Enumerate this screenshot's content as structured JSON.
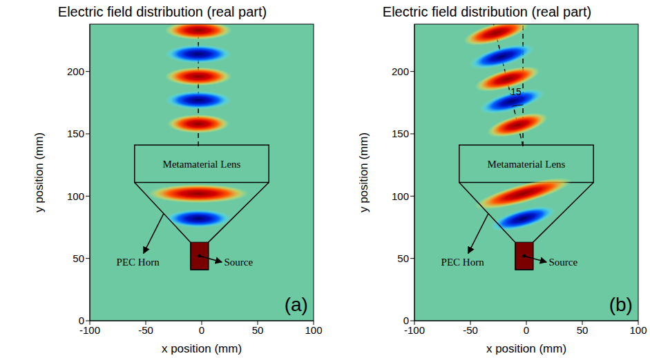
{
  "chart_data": [
    {
      "type": "field_map",
      "title": "Electric field distribution (real part)",
      "panel": "(a)",
      "x_label": "x position (mm)",
      "y_label": "y position (mm)",
      "xlim": [
        -100,
        100
      ],
      "ylim": [
        0,
        238
      ],
      "xticks": [
        -100,
        -50,
        0,
        50,
        100
      ],
      "yticks": [
        0,
        50,
        100,
        150,
        200
      ],
      "peaks": {
        "x": [
          -3,
          -3,
          -3,
          -3,
          -3,
          -3,
          -3
        ],
        "y": [
          233,
          214,
          196,
          177,
          158,
          102,
          82
        ],
        "sign": [
          1,
          -1,
          1,
          -1,
          1,
          1,
          -1
        ],
        "w": [
          60,
          60,
          60,
          60,
          56,
          90,
          60
        ]
      },
      "lens": {
        "label": "Metamaterial Lens",
        "x": [
          -60,
          60
        ],
        "y": [
          111,
          141
        ]
      },
      "horn": {
        "label": "PEC Horn",
        "x": [
          -60,
          -10,
          -10,
          6,
          6,
          60
        ],
        "y": [
          111,
          63,
          41,
          41,
          63,
          111
        ]
      },
      "source": {
        "label": "Source",
        "x": [
          -10,
          6
        ],
        "y": [
          41,
          63
        ]
      },
      "beam": {
        "origin": [
          -3,
          140
        ],
        "angle": 0
      }
    },
    {
      "type": "field_map",
      "title": "Electric field distribution (real part)",
      "panel": "(b)",
      "x_label": "x position (mm)",
      "y_label": "y position (mm)",
      "xlim": [
        -100,
        100
      ],
      "ylim": [
        0,
        238
      ],
      "xticks": [
        -100,
        -50,
        0,
        50,
        100
      ],
      "yticks": [
        0,
        50,
        100,
        150,
        200
      ],
      "peaks": {
        "x": [
          -27,
          -22,
          -17,
          -13,
          -8,
          -3,
          -3
        ],
        "y": [
          231,
          212,
          194,
          176,
          157,
          102,
          82
        ],
        "sign": [
          1,
          -1,
          1,
          -1,
          1,
          1,
          -1
        ],
        "w": [
          60,
          60,
          60,
          60,
          56,
          90,
          60
        ]
      },
      "lens": {
        "label": "Metamaterial Lens",
        "x": [
          -60,
          60
        ],
        "y": [
          111,
          141
        ]
      },
      "horn": {
        "label": "PEC Horn",
        "x": [
          -60,
          -10,
          -10,
          6,
          6,
          60
        ],
        "y": [
          111,
          63,
          41,
          41,
          63,
          111
        ]
      },
      "source": {
        "label": "Source",
        "x": [
          -10,
          6
        ],
        "y": [
          41,
          63
        ]
      },
      "beam": {
        "origin": [
          -3,
          140
        ],
        "angle": 15
      }
    }
  ]
}
